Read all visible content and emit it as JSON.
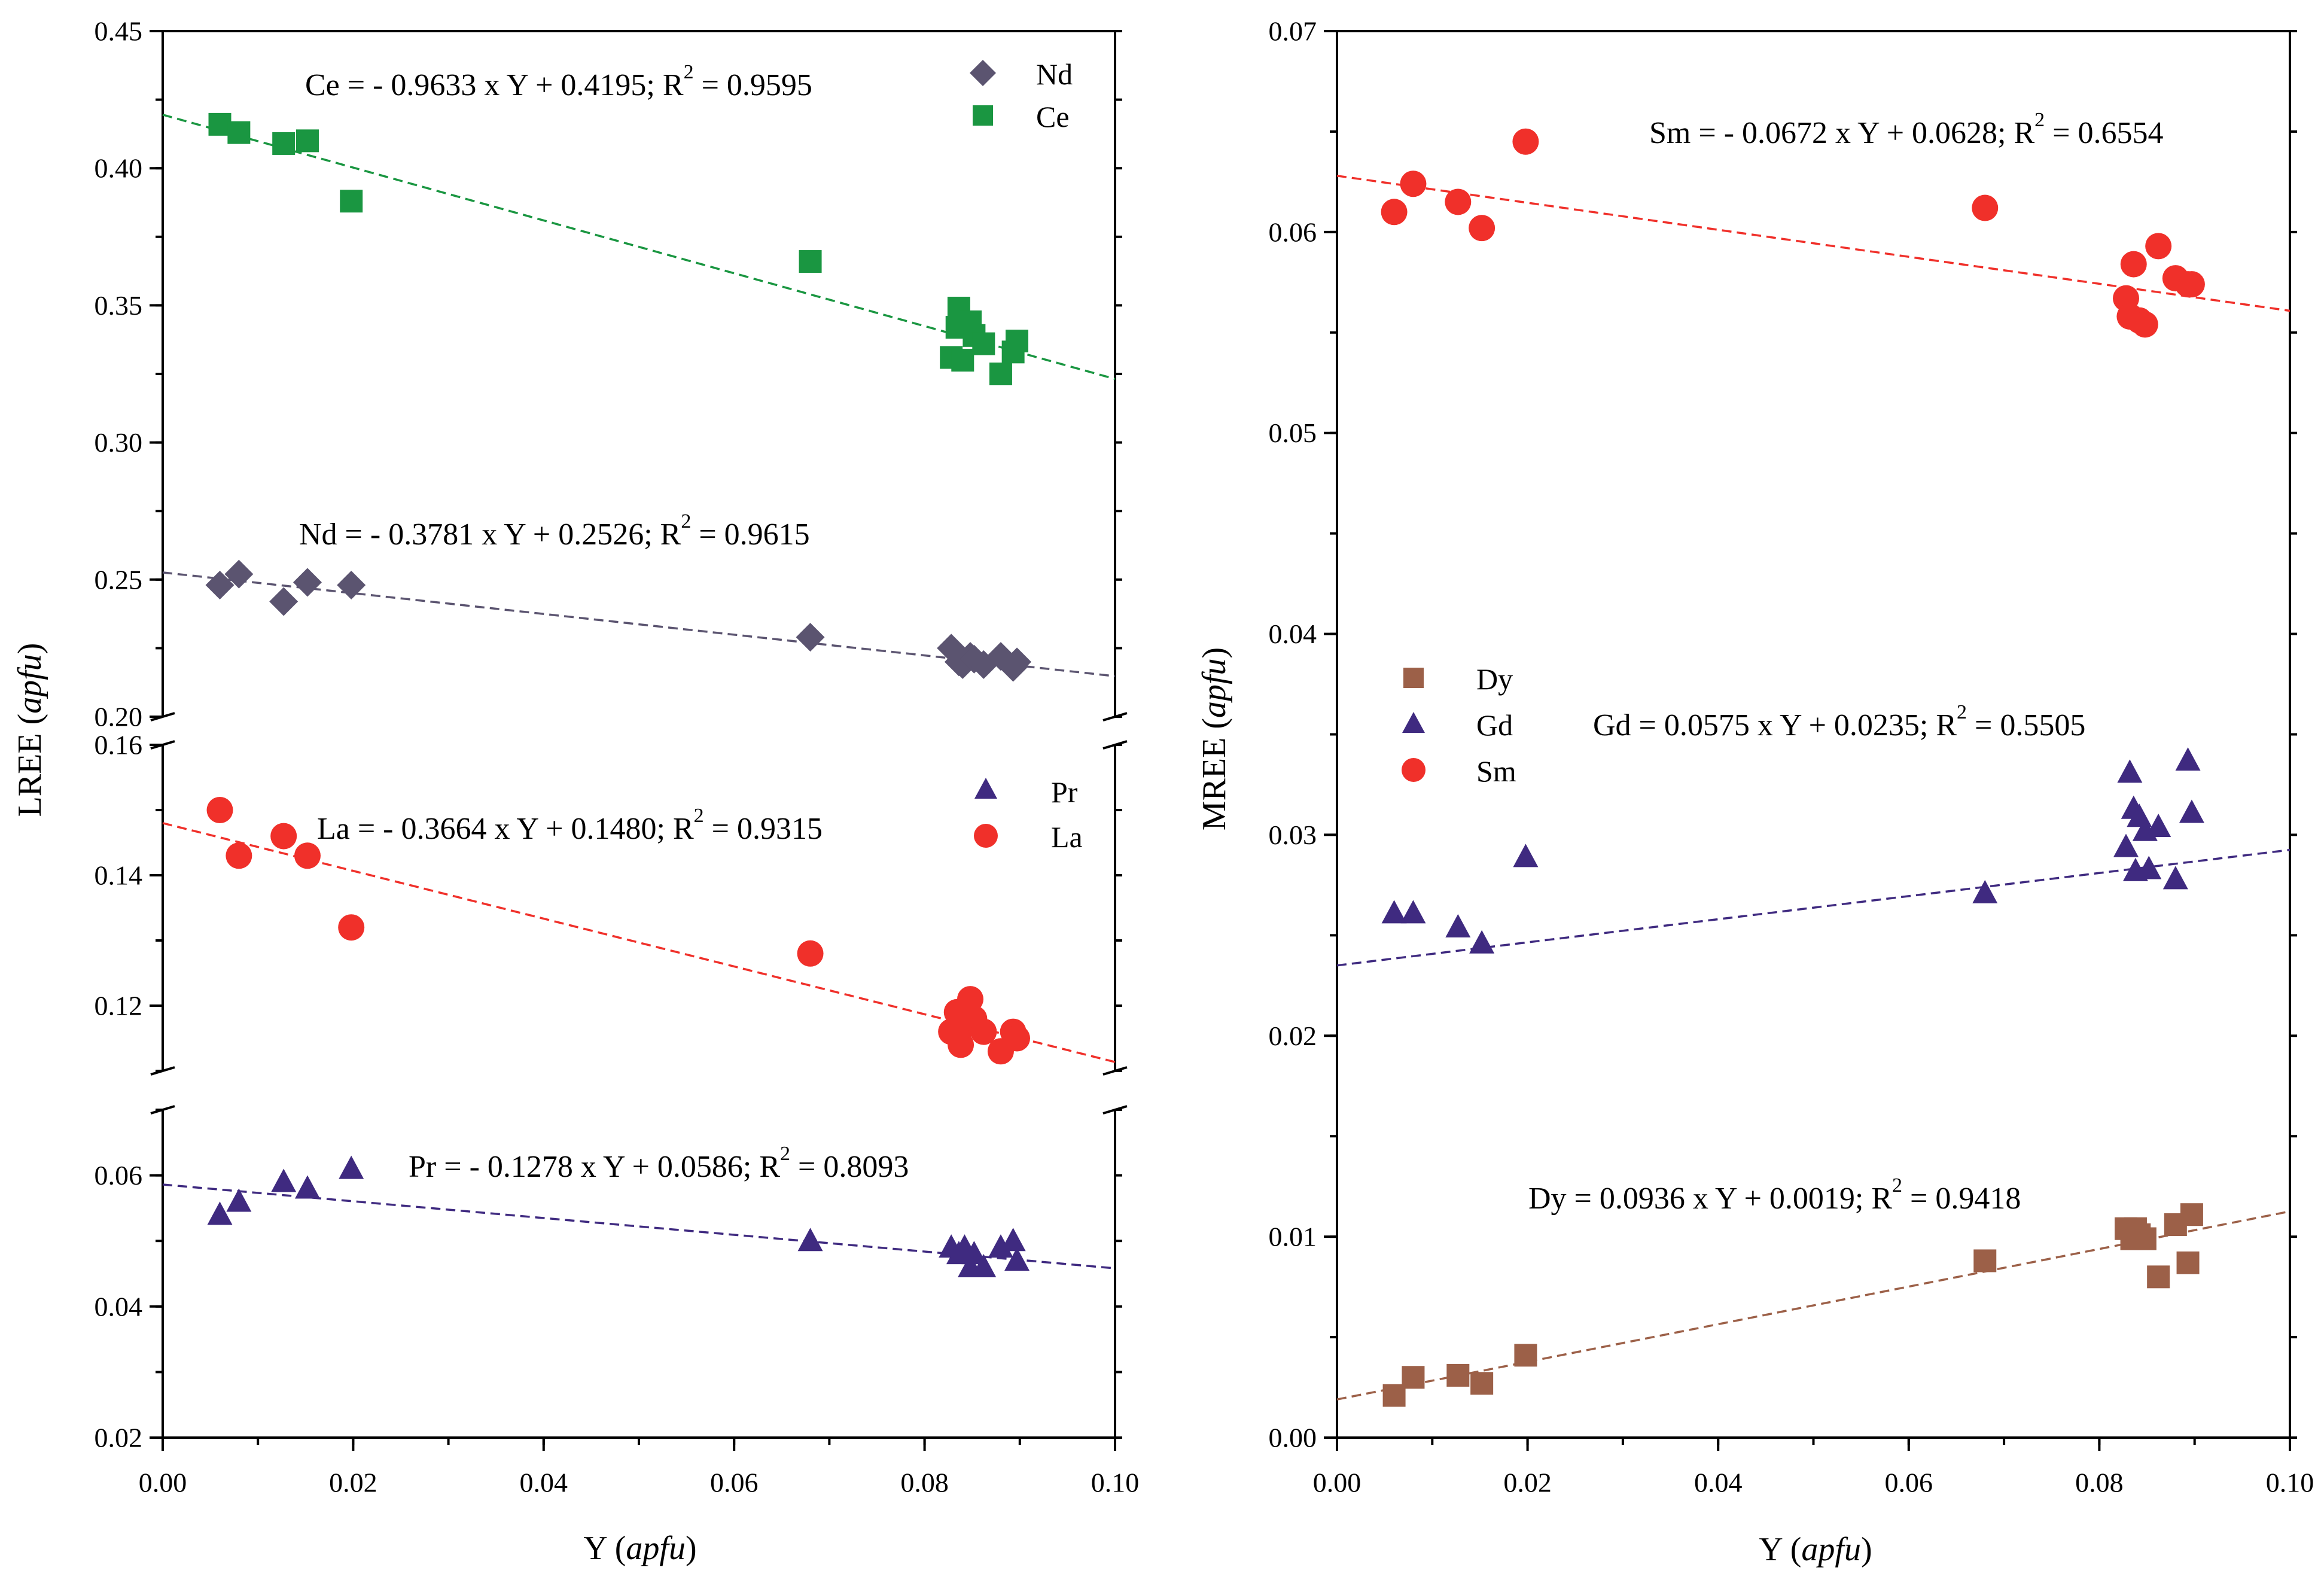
{
  "chart_data": [
    {
      "type": "scatter",
      "panel": "LREE top segment",
      "ylabel_prefix": "LREE",
      "ylabel_italic": "apfu",
      "xlim": [
        0,
        0.1
      ],
      "ylim": [
        0.2,
        0.45
      ],
      "yticks": [
        "0.20",
        "0.25",
        "0.30",
        "0.35",
        "0.40",
        "0.45"
      ],
      "legend": [
        "Nd",
        "Ce"
      ],
      "series": [
        {
          "name": "Nd",
          "marker": "diamond",
          "color": "#5b5470",
          "x": [
            0.006,
            0.008,
            0.0127,
            0.0152,
            0.0198,
            0.068,
            0.0828,
            0.0836,
            0.084,
            0.0848,
            0.0852,
            0.0862,
            0.088,
            0.0893,
            0.0897
          ],
          "y": [
            0.248,
            0.252,
            0.242,
            0.249,
            0.248,
            0.229,
            0.225,
            0.22,
            0.219,
            0.222,
            0.221,
            0.219,
            0.222,
            0.218,
            0.22
          ]
        },
        {
          "name": "Ce",
          "marker": "square",
          "color": "#1a9641",
          "x": [
            0.006,
            0.008,
            0.0127,
            0.0152,
            0.0198,
            0.068,
            0.0828,
            0.0834,
            0.0836,
            0.084,
            0.0848,
            0.0852,
            0.0862,
            0.088,
            0.0893,
            0.0897
          ],
          "y": [
            0.416,
            0.413,
            0.409,
            0.41,
            0.388,
            0.366,
            0.331,
            0.342,
            0.349,
            0.33,
            0.344,
            0.339,
            0.336,
            0.325,
            0.333,
            0.337
          ]
        }
      ],
      "fits": [
        {
          "name": "Ce",
          "slope": -0.9633,
          "intercept": 0.4195,
          "color": "#1a9641",
          "label": "Ce = - 0.9633 x Y + 0.4195; R",
          "r2": " = 0.9595"
        },
        {
          "name": "Nd",
          "slope": -0.3781,
          "intercept": 0.2526,
          "color": "#5b5470",
          "label": "Nd = - 0.3781 x Y + 0.2526; R",
          "r2": " = 0.9615"
        }
      ]
    },
    {
      "type": "scatter",
      "panel": "LREE middle segment",
      "xlim": [
        0,
        0.1
      ],
      "ylim": [
        0.11,
        0.16
      ],
      "yticks": [
        "0.12",
        "0.14",
        "0.16"
      ],
      "legend": [
        "Pr",
        "La"
      ],
      "series": [
        {
          "name": "La",
          "marker": "circle",
          "color": "#f0302a",
          "x": [
            0.006,
            0.008,
            0.0127,
            0.0152,
            0.0198,
            0.068,
            0.0828,
            0.0834,
            0.0838,
            0.0842,
            0.0848,
            0.0852,
            0.0862,
            0.088,
            0.0893,
            0.0897
          ],
          "y": [
            0.15,
            0.143,
            0.146,
            0.143,
            0.132,
            0.128,
            0.116,
            0.119,
            0.114,
            0.117,
            0.121,
            0.118,
            0.116,
            0.113,
            0.116,
            0.115
          ]
        }
      ],
      "fits": [
        {
          "name": "La",
          "slope": -0.3664,
          "intercept": 0.148,
          "color": "#f0302a",
          "label": "La = - 0.3664 x Y + 0.1480; R",
          "r2": " = 0.9315"
        }
      ]
    },
    {
      "type": "scatter",
      "panel": "LREE bottom segment",
      "xlabel_prefix": "Y",
      "xlabel_italic": "apfu",
      "xlim": [
        0,
        0.1
      ],
      "ylim": [
        0.02,
        0.07
      ],
      "xticks": [
        "0.00",
        "0.02",
        "0.04",
        "0.06",
        "0.08",
        "0.10"
      ],
      "yticks": [
        "0.02",
        "0.04",
        "0.06"
      ],
      "series": [
        {
          "name": "Pr",
          "marker": "triangle",
          "color": "#3f2a80",
          "x": [
            0.006,
            0.008,
            0.0127,
            0.0152,
            0.0198,
            0.068,
            0.0828,
            0.0836,
            0.0842,
            0.0848,
            0.0852,
            0.0862,
            0.088,
            0.0893,
            0.0897
          ],
          "y": [
            0.054,
            0.056,
            0.059,
            0.058,
            0.061,
            0.05,
            0.049,
            0.048,
            0.049,
            0.046,
            0.048,
            0.046,
            0.049,
            0.05,
            0.047
          ]
        }
      ],
      "fits": [
        {
          "name": "Pr",
          "slope": -0.1278,
          "intercept": 0.0586,
          "color": "#3f2a80",
          "label": "Pr = - 0.1278 x Y + 0.0586; R",
          "r2": " = 0.8093"
        }
      ]
    },
    {
      "type": "scatter",
      "panel": "MREE",
      "ylabel_prefix": "MREE",
      "ylabel_italic": "apfu",
      "xlabel_prefix": "Y",
      "xlabel_italic": "apfu",
      "xlim": [
        0,
        0.1
      ],
      "ylim": [
        0,
        0.07
      ],
      "xticks": [
        "0.00",
        "0.02",
        "0.04",
        "0.06",
        "0.08",
        "0.10"
      ],
      "yticks": [
        "0.00",
        "0.01",
        "0.02",
        "0.03",
        "0.04",
        "0.05",
        "0.06",
        "0.07"
      ],
      "legend": [
        "Dy",
        "Gd",
        "Sm"
      ],
      "series": [
        {
          "name": "Dy",
          "marker": "square",
          "color": "#9c6048",
          "x": [
            0.006,
            0.008,
            0.0127,
            0.0152,
            0.0198,
            0.068,
            0.0828,
            0.0834,
            0.0838,
            0.0842,
            0.0848,
            0.0862,
            0.088,
            0.0893,
            0.0897
          ],
          "y": [
            0.0021,
            0.003,
            0.0031,
            0.0027,
            0.0041,
            0.0088,
            0.0104,
            0.0099,
            0.0104,
            0.0101,
            0.0099,
            0.008,
            0.0106,
            0.0087,
            0.0111
          ]
        },
        {
          "name": "Gd",
          "marker": "triangle",
          "color": "#3f2a80",
          "x": [
            0.006,
            0.008,
            0.0127,
            0.0152,
            0.0198,
            0.068,
            0.0828,
            0.0832,
            0.0836,
            0.0838,
            0.0842,
            0.0848,
            0.0852,
            0.0862,
            0.088,
            0.0893,
            0.0897
          ],
          "y": [
            0.0261,
            0.0261,
            0.0254,
            0.0246,
            0.0289,
            0.0271,
            0.0294,
            0.0331,
            0.0313,
            0.0282,
            0.0309,
            0.0302,
            0.0283,
            0.0304,
            0.0278,
            0.0337,
            0.0311
          ]
        },
        {
          "name": "Sm",
          "marker": "circle",
          "color": "#f0302a",
          "x": [
            0.006,
            0.008,
            0.0127,
            0.0152,
            0.0198,
            0.068,
            0.0828,
            0.0832,
            0.0836,
            0.0842,
            0.0848,
            0.0862,
            0.088,
            0.0893,
            0.0897
          ],
          "y": [
            0.061,
            0.0624,
            0.0615,
            0.0602,
            0.0645,
            0.0612,
            0.0567,
            0.0558,
            0.0584,
            0.0556,
            0.0554,
            0.0593,
            0.0577,
            0.0574,
            0.0574
          ]
        }
      ],
      "fits": [
        {
          "name": "Sm",
          "slope": -0.0672,
          "intercept": 0.0628,
          "color": "#f0302a",
          "label": "Sm = - 0.0672 x Y + 0.0628; R",
          "r2": " = 0.6554"
        },
        {
          "name": "Gd",
          "slope": 0.0575,
          "intercept": 0.0235,
          "color": "#3f2a80",
          "label": "Gd = 0.0575 x Y + 0.0235; R",
          "r2": " = 0.5505"
        },
        {
          "name": "Dy",
          "slope": 0.0936,
          "intercept": 0.0019,
          "color": "#9c6048",
          "label": "Dy = 0.0936 x Y + 0.0019; R",
          "r2": " = 0.9418"
        }
      ]
    }
  ]
}
